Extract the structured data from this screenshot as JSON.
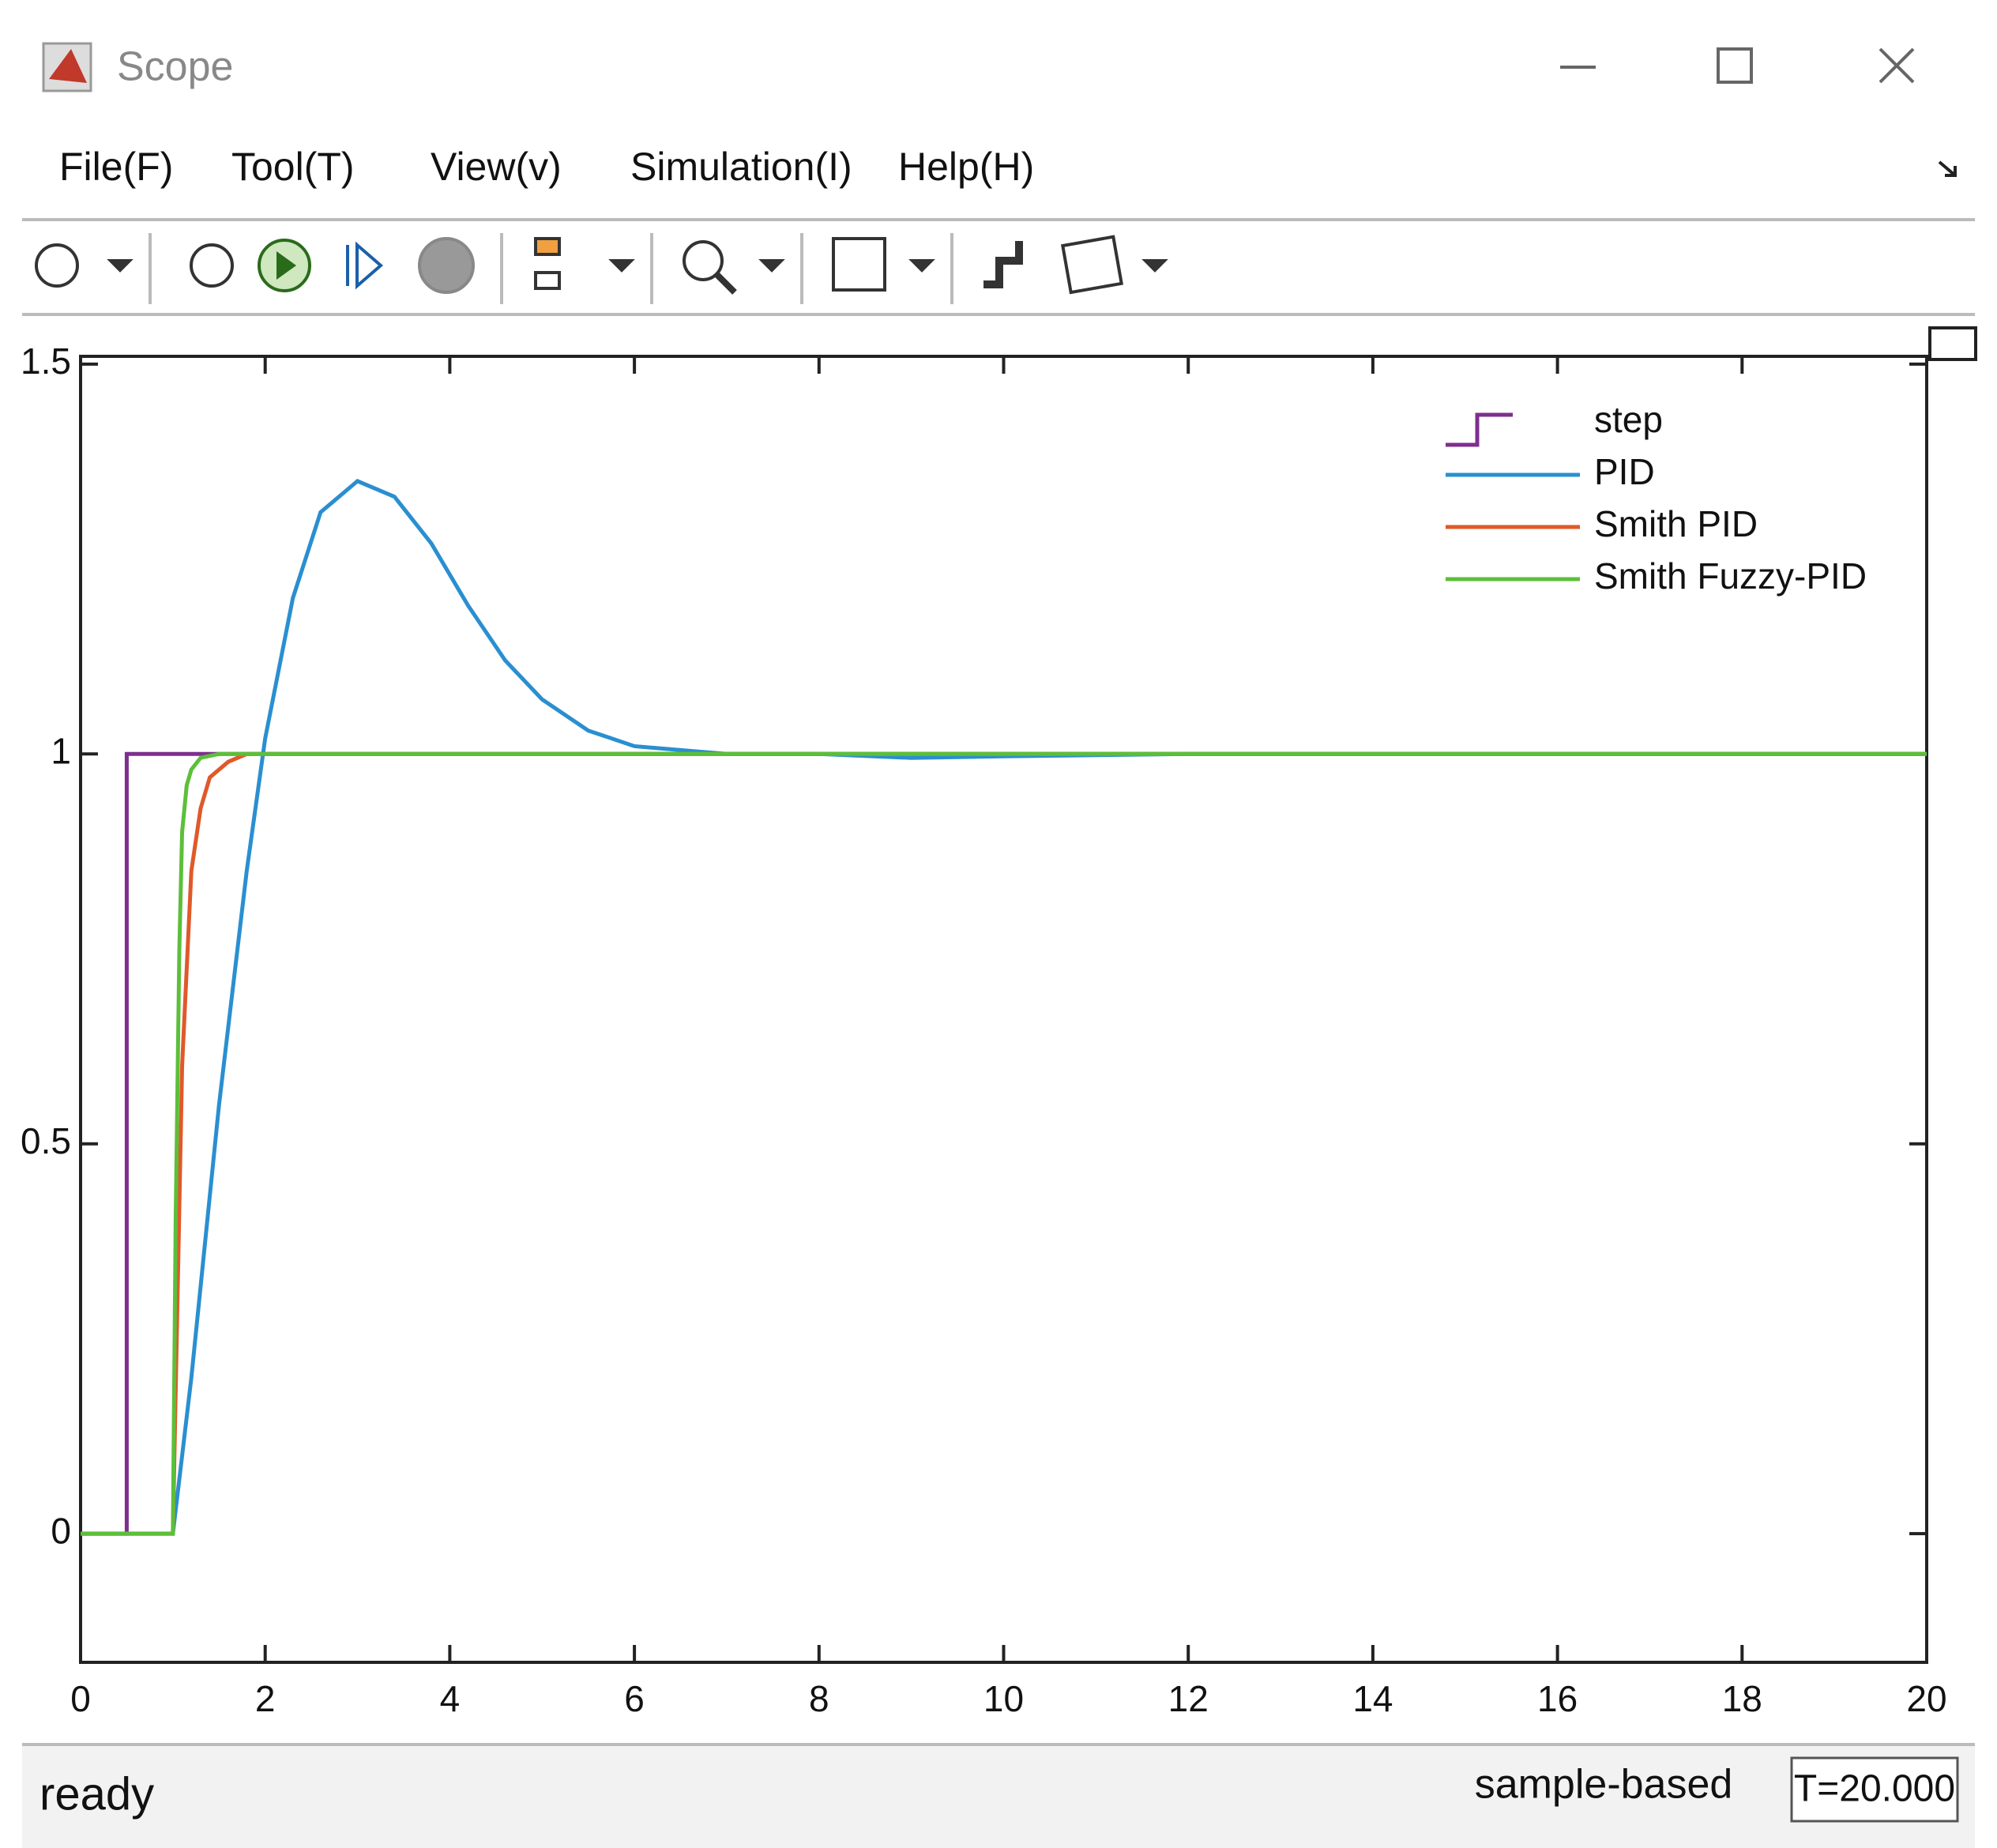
{
  "window": {
    "title": "Scope"
  },
  "menu": [
    "File(F)",
    "Tool(T)",
    "View(v)",
    "Simulation(I)",
    "Help(H)"
  ],
  "chart_data": {
    "type": "line",
    "xlim": [
      0,
      20
    ],
    "xticks": [
      0,
      2,
      4,
      6,
      8,
      10,
      12,
      14,
      16,
      18,
      20
    ],
    "ylim": [
      -0.165,
      1.51
    ],
    "yticks": [
      0,
      0.5,
      1,
      1.5
    ],
    "grid": false,
    "legend": "northeast",
    "series": [
      {
        "name": "step",
        "color": "#7e2f8e",
        "x": [
          0,
          0.5,
          0.5,
          20
        ],
        "values": [
          0,
          0,
          1,
          1
        ]
      },
      {
        "name": "PID",
        "color": "#2a8fd0",
        "x": [
          0,
          1,
          1.2,
          1.5,
          1.8,
          2,
          2.3,
          2.6,
          3,
          3.4,
          3.8,
          4.2,
          4.6,
          5,
          5.5,
          6,
          6.5,
          7,
          7.5,
          8,
          9,
          10,
          12,
          14,
          16,
          18,
          20
        ],
        "values": [
          0,
          0,
          0.2,
          0.55,
          0.85,
          1.02,
          1.2,
          1.31,
          1.35,
          1.33,
          1.27,
          1.19,
          1.12,
          1.07,
          1.03,
          1.01,
          1.005,
          1,
          1,
          1,
          0.995,
          0.997,
          1,
          1,
          1,
          1,
          1
        ]
      },
      {
        "name": "Smith PID",
        "color": "#e0592a",
        "x": [
          0,
          1,
          1.05,
          1.1,
          1.2,
          1.3,
          1.4,
          1.6,
          1.8,
          2,
          20
        ],
        "values": [
          0,
          0,
          0.3,
          0.6,
          0.85,
          0.93,
          0.97,
          0.99,
          1,
          1,
          1
        ]
      },
      {
        "name": "Smith Fuzzy-PID",
        "color": "#5cbf3a",
        "x": [
          0,
          1,
          1.03,
          1.07,
          1.1,
          1.15,
          1.2,
          1.3,
          1.5,
          20
        ],
        "values": [
          0,
          0,
          0.4,
          0.75,
          0.9,
          0.96,
          0.98,
          0.995,
          1,
          1
        ]
      }
    ]
  },
  "status": {
    "state": "ready",
    "mode": "sample-based",
    "time": "T=20.000"
  }
}
